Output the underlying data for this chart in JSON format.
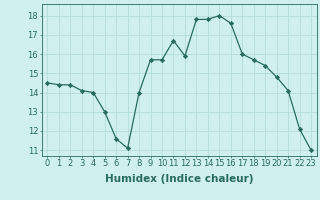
{
  "x": [
    0,
    1,
    2,
    3,
    4,
    5,
    6,
    7,
    8,
    9,
    10,
    11,
    12,
    13,
    14,
    15,
    16,
    17,
    18,
    19,
    20,
    21,
    22,
    23
  ],
  "y": [
    14.5,
    14.4,
    14.4,
    14.1,
    14.0,
    13.0,
    11.6,
    11.1,
    14.0,
    15.7,
    15.7,
    16.7,
    15.9,
    17.8,
    17.8,
    18.0,
    17.6,
    16.0,
    15.7,
    15.4,
    14.8,
    14.1,
    12.1,
    11.0
  ],
  "xlabel": "Humidex (Indice chaleur)",
  "ylim": [
    10.7,
    18.6
  ],
  "xlim": [
    -0.5,
    23.5
  ],
  "yticks": [
    11,
    12,
    13,
    14,
    15,
    16,
    17,
    18
  ],
  "xticks": [
    0,
    1,
    2,
    3,
    4,
    5,
    6,
    7,
    8,
    9,
    10,
    11,
    12,
    13,
    14,
    15,
    16,
    17,
    18,
    19,
    20,
    21,
    22,
    23
  ],
  "line_color": "#2a6b61",
  "marker": "D",
  "marker_size": 2.2,
  "bg_color": "#cff0ef",
  "grid_color": "#b0d9d6",
  "xlabel_fontsize": 7.5,
  "tick_fontsize": 6.0,
  "linewidth": 0.9
}
